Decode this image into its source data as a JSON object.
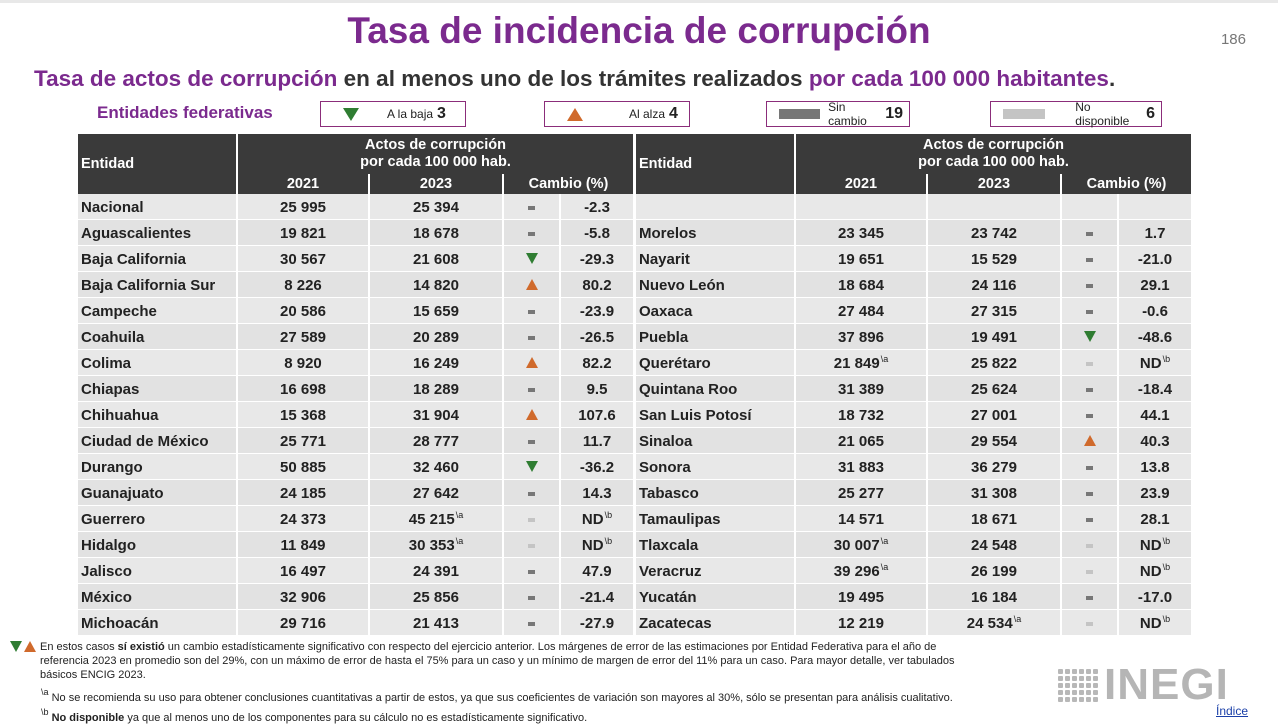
{
  "title": "Tasa de incidencia de corrupción",
  "page_number": "186",
  "subtitle": {
    "part1": "Tasa de actos de corrupción",
    "part2": " en al menos uno de los trámites realizados ",
    "part3": "por cada 100 000 habitantes",
    "part4": "."
  },
  "section_label": "Entidades federativas",
  "legend": {
    "down": {
      "label": "A la baja",
      "count": "3"
    },
    "up": {
      "label": "Al alza",
      "count": "4"
    },
    "nochange": {
      "label": "Sin cambio",
      "count": "19"
    },
    "na": {
      "label": "No disponible",
      "count": "6"
    }
  },
  "table_headers": {
    "entity": "Entidad",
    "group_line1": "Actos de corrupción",
    "group_line2": "por cada 100 000 hab.",
    "y2021": "2021",
    "y2023": "2023",
    "change": "Cambio (%)"
  },
  "left_rows": [
    {
      "entity": "Nacional",
      "v2021": "25 995",
      "v2023": "25 394",
      "ind": "dash",
      "change": "-2.3"
    },
    {
      "entity": "Aguascalientes",
      "v2021": "19 821",
      "v2023": "18 678",
      "ind": "dash",
      "change": "-5.8"
    },
    {
      "entity": "Baja California",
      "v2021": "30 567",
      "v2023": "21 608",
      "ind": "down",
      "change": "-29.3"
    },
    {
      "entity": "Baja California Sur",
      "v2021": "8 226",
      "v2023": "14 820",
      "ind": "up",
      "change": "80.2"
    },
    {
      "entity": "Campeche",
      "v2021": "20 586",
      "v2023": "15 659",
      "ind": "dash",
      "change": "-23.9"
    },
    {
      "entity": "Coahuila",
      "v2021": "27 589",
      "v2023": "20 289",
      "ind": "dash",
      "change": "-26.5"
    },
    {
      "entity": "Colima",
      "v2021": "8 920",
      "v2023": "16 249",
      "ind": "up",
      "change": "82.2"
    },
    {
      "entity": "Chiapas",
      "v2021": "16 698",
      "v2023": "18 289",
      "ind": "dash",
      "change": "9.5"
    },
    {
      "entity": "Chihuahua",
      "v2021": "15 368",
      "v2023": "31 904",
      "ind": "up",
      "change": "107.6"
    },
    {
      "entity": "Ciudad de México",
      "v2021": "25 771",
      "v2023": "28 777",
      "ind": "dash",
      "change": "11.7"
    },
    {
      "entity": "Durango",
      "v2021": "50 885",
      "v2023": "32 460",
      "ind": "down",
      "change": "-36.2"
    },
    {
      "entity": "Guanajuato",
      "v2021": "24 185",
      "v2023": "27 642",
      "ind": "dash",
      "change": "14.3"
    },
    {
      "entity": "Guerrero",
      "v2021": "24 373",
      "v2023": "45 215",
      "v2023_sup": "\\a",
      "ind": "nd",
      "change": "ND",
      "change_sup": "\\b"
    },
    {
      "entity": "Hidalgo",
      "v2021": "11 849",
      "v2023": "30 353",
      "v2023_sup": "\\a",
      "ind": "nd",
      "change": "ND",
      "change_sup": "\\b"
    },
    {
      "entity": "Jalisco",
      "v2021": "16 497",
      "v2023": "24 391",
      "ind": "dash",
      "change": "47.9"
    },
    {
      "entity": "México",
      "v2021": "32 906",
      "v2023": "25 856",
      "ind": "dash",
      "change": "-21.4"
    },
    {
      "entity": "Michoacán",
      "v2021": "29 716",
      "v2023": "21 413",
      "ind": "dash",
      "change": "-27.9"
    }
  ],
  "right_rows": [
    {
      "entity": "",
      "v2021": "",
      "v2023": "",
      "ind": "",
      "change": ""
    },
    {
      "entity": "Morelos",
      "v2021": "23 345",
      "v2023": "23 742",
      "ind": "dash",
      "change": "1.7"
    },
    {
      "entity": "Nayarit",
      "v2021": "19 651",
      "v2023": "15 529",
      "ind": "dash",
      "change": "-21.0"
    },
    {
      "entity": "Nuevo León",
      "v2021": "18 684",
      "v2023": "24 116",
      "ind": "dash",
      "change": "29.1"
    },
    {
      "entity": "Oaxaca",
      "v2021": "27 484",
      "v2023": "27 315",
      "ind": "dash",
      "change": "-0.6"
    },
    {
      "entity": "Puebla",
      "v2021": "37 896",
      "v2023": "19 491",
      "ind": "down",
      "change": "-48.6"
    },
    {
      "entity": "Querétaro",
      "v2021": "21 849",
      "v2021_sup": "\\a",
      "v2023": "25 822",
      "ind": "nd",
      "change": "ND",
      "change_sup": "\\b"
    },
    {
      "entity": "Quintana Roo",
      "v2021": "31 389",
      "v2023": "25 624",
      "ind": "dash",
      "change": "-18.4"
    },
    {
      "entity": "San Luis Potosí",
      "v2021": "18 732",
      "v2023": "27 001",
      "ind": "dash",
      "change": "44.1"
    },
    {
      "entity": "Sinaloa",
      "v2021": "21 065",
      "v2023": "29 554",
      "ind": "up",
      "change": "40.3"
    },
    {
      "entity": "Sonora",
      "v2021": "31 883",
      "v2023": "36 279",
      "ind": "dash",
      "change": "13.8"
    },
    {
      "entity": "Tabasco",
      "v2021": "25 277",
      "v2023": "31 308",
      "ind": "dash",
      "change": "23.9"
    },
    {
      "entity": "Tamaulipas",
      "v2021": "14 571",
      "v2023": "18 671",
      "ind": "dash",
      "change": "28.1"
    },
    {
      "entity": "Tlaxcala",
      "v2021": "30 007",
      "v2021_sup": "\\a",
      "v2023": "24 548",
      "ind": "nd",
      "change": "ND",
      "change_sup": "\\b"
    },
    {
      "entity": "Veracruz",
      "v2021": "39 296",
      "v2021_sup": "\\a",
      "v2023": "26 199",
      "ind": "nd",
      "change": "ND",
      "change_sup": "\\b"
    },
    {
      "entity": "Yucatán",
      "v2021": "19 495",
      "v2023": "16 184",
      "ind": "dash",
      "change": "-17.0"
    },
    {
      "entity": "Zacatecas",
      "v2021": "12 219",
      "v2023": "24 534",
      "v2023_sup": "\\a",
      "ind": "nd",
      "change": "ND",
      "change_sup": "\\b"
    }
  ],
  "notes": {
    "line1_pre": "En estos casos ",
    "line1_bold": "sí existió",
    "line1_post": " un cambio estadísticamente significativo con respecto del ejercicio anterior. Los márgenes de error de las estimaciones por Entidad Federativa para el año de",
    "line2": "referencia 2023 en promedio son del 29%, con un máximo de error de hasta el 75% para un caso y un mínimo de margen de error del 11% para un caso. Para mayor detalle, ver tabulados",
    "line3": "básicos ENCIG 2023.",
    "fn_a_mark": "\\a",
    "fn_a": " No se recomienda su uso para obtener conclusiones cuantitativas a partir de estos, ya que sus coeficientes de variación son mayores al 30%, sólo se presentan para análisis cualitativo.",
    "fn_b_mark": "\\b",
    "fn_b_bold": " No disponible",
    "fn_b": " ya que al menos uno de los componentes para su cálculo no es estadísticamente significativo."
  },
  "logo_text": "INEGI",
  "index_link": "Índice",
  "colors": {
    "title": "#7b2a8e",
    "down": "#2f7d32",
    "up": "#d06a2c",
    "header": "#3a3a3a"
  }
}
